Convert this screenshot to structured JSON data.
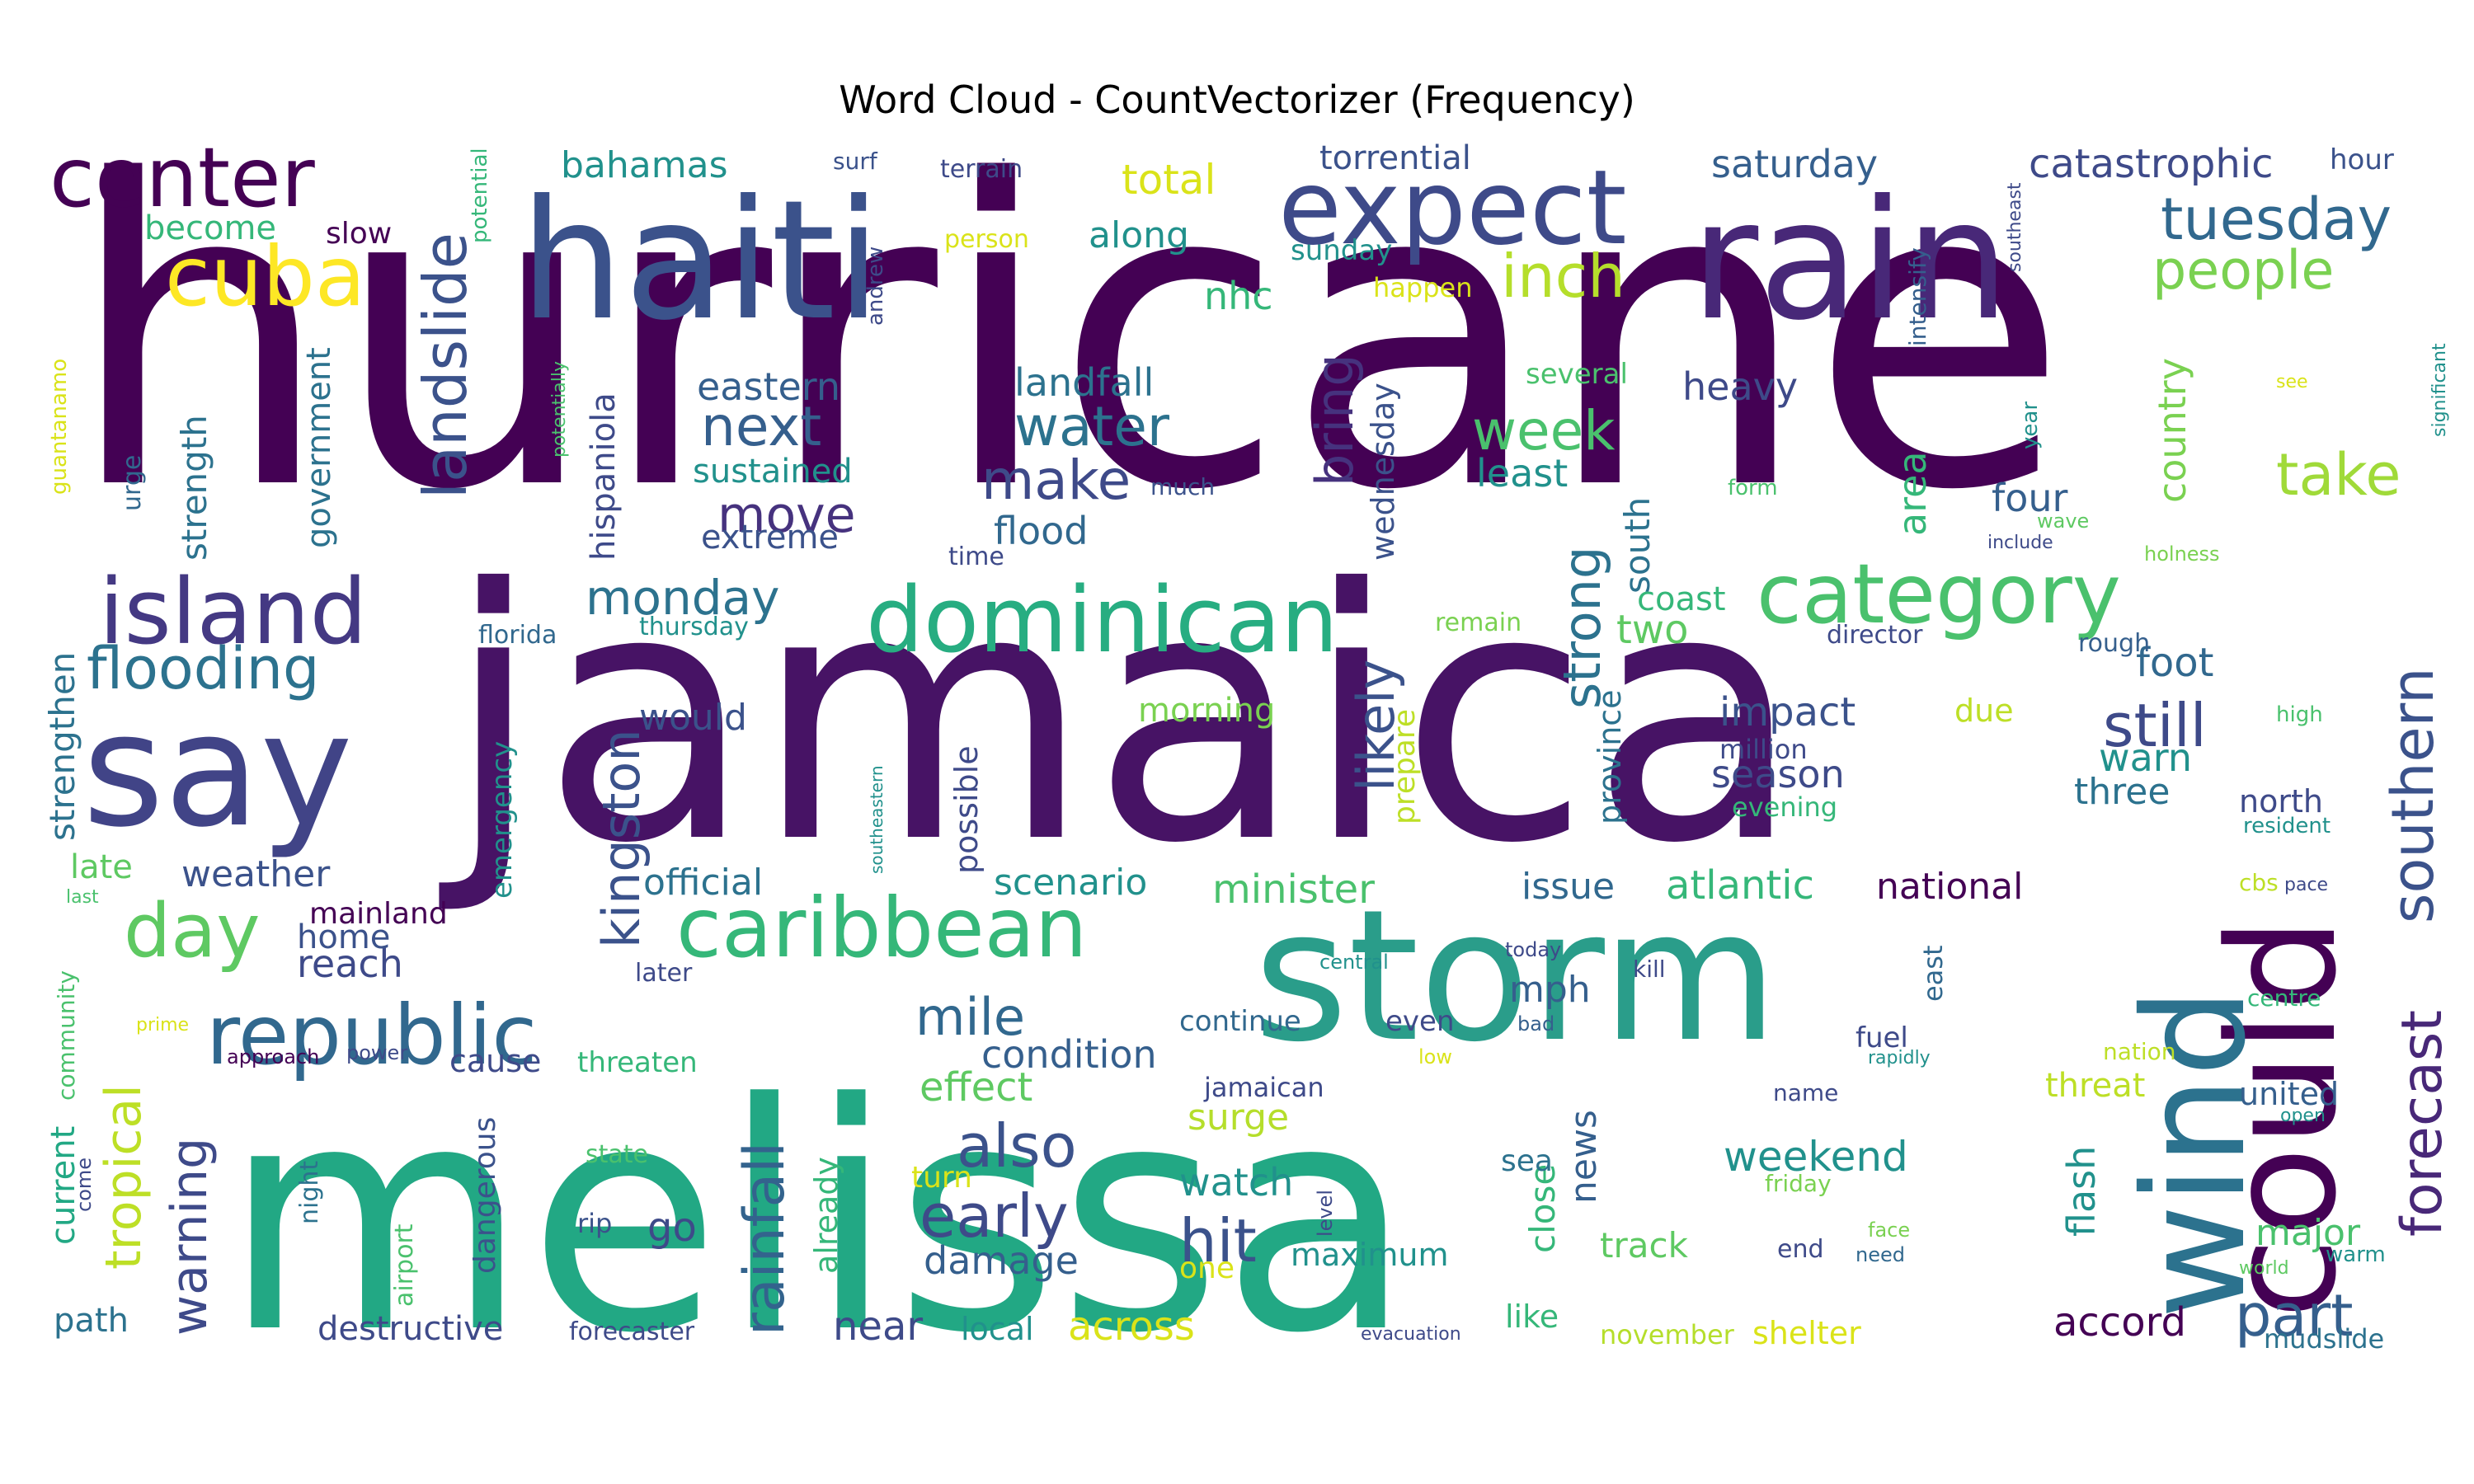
{
  "chart_data": {
    "type": "wordcloud",
    "title": "Word Cloud - CountVectorizer (Frequency)",
    "colormap": "viridis",
    "background": "#ffffff",
    "words": [
      {
        "text": "hurricane",
        "weight": 100,
        "color": "#440154"
      },
      {
        "text": "jamaica",
        "weight": 96,
        "color": "#471365"
      },
      {
        "text": "melissa",
        "weight": 93,
        "color": "#22a884"
      },
      {
        "text": "storm",
        "weight": 60,
        "color": "#2a9d8a"
      },
      {
        "text": "haiti",
        "weight": 52,
        "color": "#3b528b"
      },
      {
        "text": "rain",
        "weight": 50,
        "color": "#482878"
      },
      {
        "text": "say",
        "weight": 48,
        "color": "#414487"
      },
      {
        "text": "could",
        "weight": 46,
        "color": "#440154"
      },
      {
        "text": "wind",
        "weight": 44,
        "color": "#2c728e"
      },
      {
        "text": "expect",
        "weight": 40,
        "color": "#3e4a89"
      },
      {
        "text": "island",
        "weight": 34,
        "color": "#443983"
      },
      {
        "text": "dominican",
        "weight": 34,
        "color": "#27ad81"
      },
      {
        "text": "center",
        "weight": 32,
        "color": "#440154"
      },
      {
        "text": "cuba",
        "weight": 31,
        "color": "#fde725"
      },
      {
        "text": "republic",
        "weight": 30,
        "color": "#31688e"
      },
      {
        "text": "caribbean",
        "weight": 28,
        "color": "#35b779"
      },
      {
        "text": "category",
        "weight": 28,
        "color": "#4ac16d"
      },
      {
        "text": "day",
        "weight": 27,
        "color": "#5ec962"
      },
      {
        "text": "flooding",
        "weight": 23,
        "color": "#2c728e"
      },
      {
        "text": "tuesday",
        "weight": 21,
        "color": "#31688e"
      },
      {
        "text": "people",
        "weight": 21,
        "color": "#7ad151"
      },
      {
        "text": "southern",
        "weight": 21,
        "color": "#3b528b"
      },
      {
        "text": "forecast",
        "weight": 20,
        "color": "#482878"
      },
      {
        "text": "part",
        "weight": 20,
        "color": "#355f8d"
      },
      {
        "text": "landslide",
        "weight": 20,
        "color": "#3b528b"
      },
      {
        "text": "tropical",
        "weight": 19,
        "color": "#bddf26"
      },
      {
        "text": "warning",
        "weight": 18,
        "color": "#3e4a89"
      },
      {
        "text": "rainfall",
        "weight": 18,
        "color": "#33638d"
      },
      {
        "text": "kingston",
        "weight": 18,
        "color": "#3b528b"
      },
      {
        "text": "strong",
        "weight": 18,
        "color": "#2c728e"
      },
      {
        "text": "still",
        "weight": 18,
        "color": "#3e4a89"
      },
      {
        "text": "early",
        "weight": 18,
        "color": "#3e4a89"
      },
      {
        "text": "also",
        "weight": 17,
        "color": "#3b528b"
      },
      {
        "text": "mile",
        "weight": 17,
        "color": "#31688e"
      },
      {
        "text": "hit",
        "weight": 17,
        "color": "#3b528b"
      },
      {
        "text": "likely",
        "weight": 17,
        "color": "#3b528b"
      },
      {
        "text": "bring",
        "weight": 17,
        "color": "#46327e"
      },
      {
        "text": "take",
        "weight": 17,
        "color": "#a0da39"
      },
      {
        "text": "next",
        "weight": 16,
        "color": "#355f8d"
      },
      {
        "text": "water",
        "weight": 16,
        "color": "#2c728e"
      },
      {
        "text": "make",
        "weight": 16,
        "color": "#3e4a89"
      },
      {
        "text": "week",
        "weight": 16,
        "color": "#4ac16d"
      },
      {
        "text": "move",
        "weight": 15,
        "color": "#46327e"
      },
      {
        "text": "monday",
        "weight": 15,
        "color": "#2c728e"
      },
      {
        "text": "inch",
        "weight": 16,
        "color": "#b5de2b"
      },
      {
        "text": "foot",
        "weight": 12,
        "color": "#31688e"
      },
      {
        "text": "flood",
        "weight": 12,
        "color": "#31688e"
      },
      {
        "text": "heavy",
        "weight": 11,
        "color": "#3e4a89"
      },
      {
        "text": "landfall",
        "weight": 11,
        "color": "#2c728e"
      },
      {
        "text": "eastern",
        "weight": 11,
        "color": "#355f8d"
      },
      {
        "text": "saturday",
        "weight": 11,
        "color": "#355f8d"
      },
      {
        "text": "catastrophic",
        "weight": 12,
        "color": "#3e4a89"
      },
      {
        "text": "strengthen",
        "weight": 11,
        "color": "#2c728e"
      },
      {
        "text": "strength",
        "weight": 11,
        "color": "#2c728e"
      },
      {
        "text": "government",
        "weight": 10,
        "color": "#2c728e"
      },
      {
        "text": "hispaniola",
        "weight": 10,
        "color": "#3e4a89"
      },
      {
        "text": "wednesday",
        "weight": 10,
        "color": "#3b528b"
      },
      {
        "text": "country",
        "weight": 11,
        "color": "#7ad151"
      },
      {
        "text": "area",
        "weight": 11,
        "color": "#35b779"
      },
      {
        "text": "four",
        "weight": 11,
        "color": "#355f8d"
      },
      {
        "text": "south",
        "weight": 10,
        "color": "#2c728e"
      },
      {
        "text": "least",
        "weight": 11,
        "color": "#21918c"
      },
      {
        "text": "total",
        "weight": 12,
        "color": "#dae319"
      },
      {
        "text": "along",
        "weight": 11,
        "color": "#21918c"
      },
      {
        "text": "bahamas",
        "weight": 11,
        "color": "#21918c"
      },
      {
        "text": "torrential",
        "weight": 10,
        "color": "#3b528b"
      },
      {
        "text": "become",
        "weight": 10,
        "color": "#35b779"
      },
      {
        "text": "slow",
        "weight": 9,
        "color": "#440154"
      },
      {
        "text": "nhc",
        "weight": 11,
        "color": "#35b779"
      },
      {
        "text": "sustained",
        "weight": 10,
        "color": "#21918c"
      },
      {
        "text": "extreme",
        "weight": 10,
        "color": "#3b528b"
      },
      {
        "text": "impact",
        "weight": 12,
        "color": "#3b528b"
      },
      {
        "text": "season",
        "weight": 12,
        "color": "#3e4a89"
      },
      {
        "text": "warn",
        "weight": 12,
        "color": "#21918c"
      },
      {
        "text": "three",
        "weight": 11,
        "color": "#2c728e"
      },
      {
        "text": "two",
        "weight": 12,
        "color": "#5ec962"
      },
      {
        "text": "coast",
        "weight": 10,
        "color": "#35b779"
      },
      {
        "text": "weather",
        "weight": 11,
        "color": "#3b528b"
      },
      {
        "text": "would",
        "weight": 11,
        "color": "#3b528b"
      },
      {
        "text": "official",
        "weight": 11,
        "color": "#2c728e"
      },
      {
        "text": "scenario",
        "weight": 11,
        "color": "#21918c"
      },
      {
        "text": "minister",
        "weight": 12,
        "color": "#4ac16d"
      },
      {
        "text": "condition",
        "weight": 11,
        "color": "#355f8d"
      },
      {
        "text": "effect",
        "weight": 12,
        "color": "#5ec962"
      },
      {
        "text": "surge",
        "weight": 11,
        "color": "#b5de2b"
      },
      {
        "text": "watch",
        "weight": 12,
        "color": "#21918c"
      },
      {
        "text": "damage",
        "weight": 12,
        "color": "#355f8d"
      },
      {
        "text": "weekend",
        "weight": 12,
        "color": "#21918c"
      },
      {
        "text": "atlantic",
        "weight": 12,
        "color": "#35b779"
      },
      {
        "text": "national",
        "weight": 11,
        "color": "#440154"
      },
      {
        "text": "issue",
        "weight": 11,
        "color": "#31688e"
      },
      {
        "text": "mph",
        "weight": 11,
        "color": "#355f8d"
      },
      {
        "text": "province",
        "weight": 10,
        "color": "#2c728e"
      },
      {
        "text": "possible",
        "weight": 10,
        "color": "#3e4a89"
      },
      {
        "text": "prepare",
        "weight": 9,
        "color": "#bddf26"
      },
      {
        "text": "morning",
        "weight": 10,
        "color": "#7ad151"
      },
      {
        "text": "emergency",
        "weight": 9,
        "color": "#21918c"
      },
      {
        "text": "mainland",
        "weight": 9,
        "color": "#440154"
      },
      {
        "text": "reach",
        "weight": 11,
        "color": "#3e4a89"
      },
      {
        "text": "home",
        "weight": 10,
        "color": "#3b528b"
      },
      {
        "text": "late",
        "weight": 10,
        "color": "#5ec962"
      },
      {
        "text": "current",
        "weight": 10,
        "color": "#22a884"
      },
      {
        "text": "path",
        "weight": 10,
        "color": "#2c728e"
      },
      {
        "text": "destructive",
        "weight": 10,
        "color": "#3e4a89"
      },
      {
        "text": "cause",
        "weight": 10,
        "color": "#3e4a89"
      },
      {
        "text": "threaten",
        "weight": 9,
        "color": "#35b779"
      },
      {
        "text": "dangerous",
        "weight": 9,
        "color": "#3b528b"
      },
      {
        "text": "go",
        "weight": 11,
        "color": "#3e4a89"
      },
      {
        "text": "rip",
        "weight": 8,
        "color": "#3b528b"
      },
      {
        "text": "near",
        "weight": 12,
        "color": "#3e4a89"
      },
      {
        "text": "local",
        "weight": 10,
        "color": "#21918c"
      },
      {
        "text": "across",
        "weight": 12,
        "color": "#dae319"
      },
      {
        "text": "already",
        "weight": 10,
        "color": "#35b779"
      },
      {
        "text": "maximum",
        "weight": 10,
        "color": "#21918c"
      },
      {
        "text": "close",
        "weight": 10,
        "color": "#35b779"
      },
      {
        "text": "news",
        "weight": 11,
        "color": "#355f8d"
      },
      {
        "text": "track",
        "weight": 10,
        "color": "#5ec962"
      },
      {
        "text": "flash",
        "weight": 11,
        "color": "#21918c"
      },
      {
        "text": "major",
        "weight": 11,
        "color": "#4ac16d"
      },
      {
        "text": "accord",
        "weight": 11,
        "color": "#440154"
      },
      {
        "text": "united",
        "weight": 9,
        "color": "#355f8d"
      },
      {
        "text": "threat",
        "weight": 9,
        "color": "#bddf26"
      },
      {
        "text": "north",
        "weight": 9,
        "color": "#3e4a89"
      },
      {
        "text": "fuel",
        "weight": 8,
        "color": "#3e4a89"
      },
      {
        "text": "like",
        "weight": 9,
        "color": "#35b779"
      },
      {
        "text": "shelter",
        "weight": 9,
        "color": "#dae319"
      },
      {
        "text": "november",
        "weight": 8,
        "color": "#b5de2b"
      },
      {
        "text": "mudslide",
        "weight": 8,
        "color": "#2c728e"
      },
      {
        "text": "continue",
        "weight": 8,
        "color": "#31688e"
      },
      {
        "text": "even",
        "weight": 8,
        "color": "#3e4a89"
      },
      {
        "text": "jamaican",
        "weight": 8,
        "color": "#3e4a89"
      },
      {
        "text": "sea",
        "weight": 9,
        "color": "#2c728e"
      },
      {
        "text": "end",
        "weight": 7,
        "color": "#3e4a89"
      },
      {
        "text": "friday",
        "weight": 7,
        "color": "#7ad151"
      },
      {
        "text": "director",
        "weight": 7,
        "color": "#3e4a89"
      },
      {
        "text": "rough",
        "weight": 7,
        "color": "#355f8d"
      },
      {
        "text": "million",
        "weight": 8,
        "color": "#3e4a89"
      },
      {
        "text": "evening",
        "weight": 8,
        "color": "#35b779"
      },
      {
        "text": "due",
        "weight": 9,
        "color": "#bddf26"
      },
      {
        "text": "remain",
        "weight": 7,
        "color": "#7ad151"
      },
      {
        "text": "thursday",
        "weight": 7,
        "color": "#21918c"
      },
      {
        "text": "florida",
        "weight": 7,
        "color": "#31688e"
      },
      {
        "text": "time",
        "weight": 7,
        "color": "#3e4a89"
      },
      {
        "text": "much",
        "weight": 7,
        "color": "#3b528b"
      },
      {
        "text": "form",
        "weight": 6,
        "color": "#4ac16d"
      },
      {
        "text": "several",
        "weight": 8,
        "color": "#4ac16d"
      },
      {
        "text": "sunday",
        "weight": 8,
        "color": "#21918c"
      },
      {
        "text": "happen",
        "weight": 8,
        "color": "#dae319"
      },
      {
        "text": "person",
        "weight": 7,
        "color": "#dae319"
      },
      {
        "text": "terrain",
        "weight": 7,
        "color": "#3e4a89"
      },
      {
        "text": "surf",
        "weight": 6,
        "color": "#3b528b"
      },
      {
        "text": "andrew",
        "weight": 6,
        "color": "#3e4a89"
      },
      {
        "text": "potential",
        "weight": 6,
        "color": "#35b779"
      },
      {
        "text": "potentially",
        "weight": 5,
        "color": "#4ac16d"
      },
      {
        "text": "guantanamo",
        "weight": 6,
        "color": "#dae319"
      },
      {
        "text": "urge",
        "weight": 7,
        "color": "#31688e"
      },
      {
        "text": "intensify",
        "weight": 6,
        "color": "#355f8d"
      },
      {
        "text": "southeast",
        "weight": 5,
        "color": "#3e4a89"
      },
      {
        "text": "hour",
        "weight": 8,
        "color": "#3b528b"
      },
      {
        "text": "year",
        "weight": 6,
        "color": "#21918c"
      },
      {
        "text": "see",
        "weight": 5,
        "color": "#dae319"
      },
      {
        "text": "significant",
        "weight": 5,
        "color": "#21918c"
      },
      {
        "text": "wave",
        "weight": 5,
        "color": "#5ec962"
      },
      {
        "text": "include",
        "weight": 5,
        "color": "#3e4a89"
      },
      {
        "text": "holness",
        "weight": 5,
        "color": "#7ad151"
      },
      {
        "text": "high",
        "weight": 6,
        "color": "#4ac16d"
      },
      {
        "text": "resident",
        "weight": 6,
        "color": "#21918c"
      },
      {
        "text": "cbs",
        "weight": 6,
        "color": "#bddf26"
      },
      {
        "text": "pace",
        "weight": 5,
        "color": "#3e4a89"
      },
      {
        "text": "centre",
        "weight": 6,
        "color": "#35b779"
      },
      {
        "text": "nation",
        "weight": 6,
        "color": "#bddf26"
      },
      {
        "text": "open",
        "weight": 5,
        "color": "#21918c"
      },
      {
        "text": "warm",
        "weight": 6,
        "color": "#21918c"
      },
      {
        "text": "world",
        "weight": 5,
        "color": "#5ec962"
      },
      {
        "text": "need",
        "weight": 5,
        "color": "#31688e"
      },
      {
        "text": "face",
        "weight": 5,
        "color": "#7ad151"
      },
      {
        "text": "name",
        "weight": 6,
        "color": "#3e4a89"
      },
      {
        "text": "rapidly",
        "weight": 5,
        "color": "#21918c"
      },
      {
        "text": "east",
        "weight": 7,
        "color": "#31688e"
      },
      {
        "text": "kill",
        "weight": 6,
        "color": "#3e4a89"
      },
      {
        "text": "today",
        "weight": 5,
        "color": "#3e4a89"
      },
      {
        "text": "bad",
        "weight": 5,
        "color": "#355f8d"
      },
      {
        "text": "low",
        "weight": 5,
        "color": "#dae319"
      },
      {
        "text": "central",
        "weight": 5,
        "color": "#21918c"
      },
      {
        "text": "level",
        "weight": 5,
        "color": "#3e4a89"
      },
      {
        "text": "one",
        "weight": 7,
        "color": "#dae319"
      },
      {
        "text": "turn",
        "weight": 7,
        "color": "#dae319"
      },
      {
        "text": "state",
        "weight": 6,
        "color": "#4ac16d"
      },
      {
        "text": "evacuation",
        "weight": 5,
        "color": "#3e4a89"
      },
      {
        "text": "forecaster",
        "weight": 7,
        "color": "#3e4a89"
      },
      {
        "text": "airport",
        "weight": 7,
        "color": "#4ac16d"
      },
      {
        "text": "night",
        "weight": 6,
        "color": "#2c728e"
      },
      {
        "text": "come",
        "weight": 5,
        "color": "#3e4a89"
      },
      {
        "text": "community",
        "weight": 6,
        "color": "#4ac16d"
      },
      {
        "text": "approach",
        "weight": 5,
        "color": "#440154"
      },
      {
        "text": "power",
        "weight": 5,
        "color": "#3e4a89"
      },
      {
        "text": "prime",
        "weight": 5,
        "color": "#dae319"
      },
      {
        "text": "later",
        "weight": 6,
        "color": "#3e4a89"
      },
      {
        "text": "last",
        "weight": 5,
        "color": "#4ac16d"
      },
      {
        "text": "southeastern",
        "weight": 4,
        "color": "#21918c"
      }
    ]
  }
}
